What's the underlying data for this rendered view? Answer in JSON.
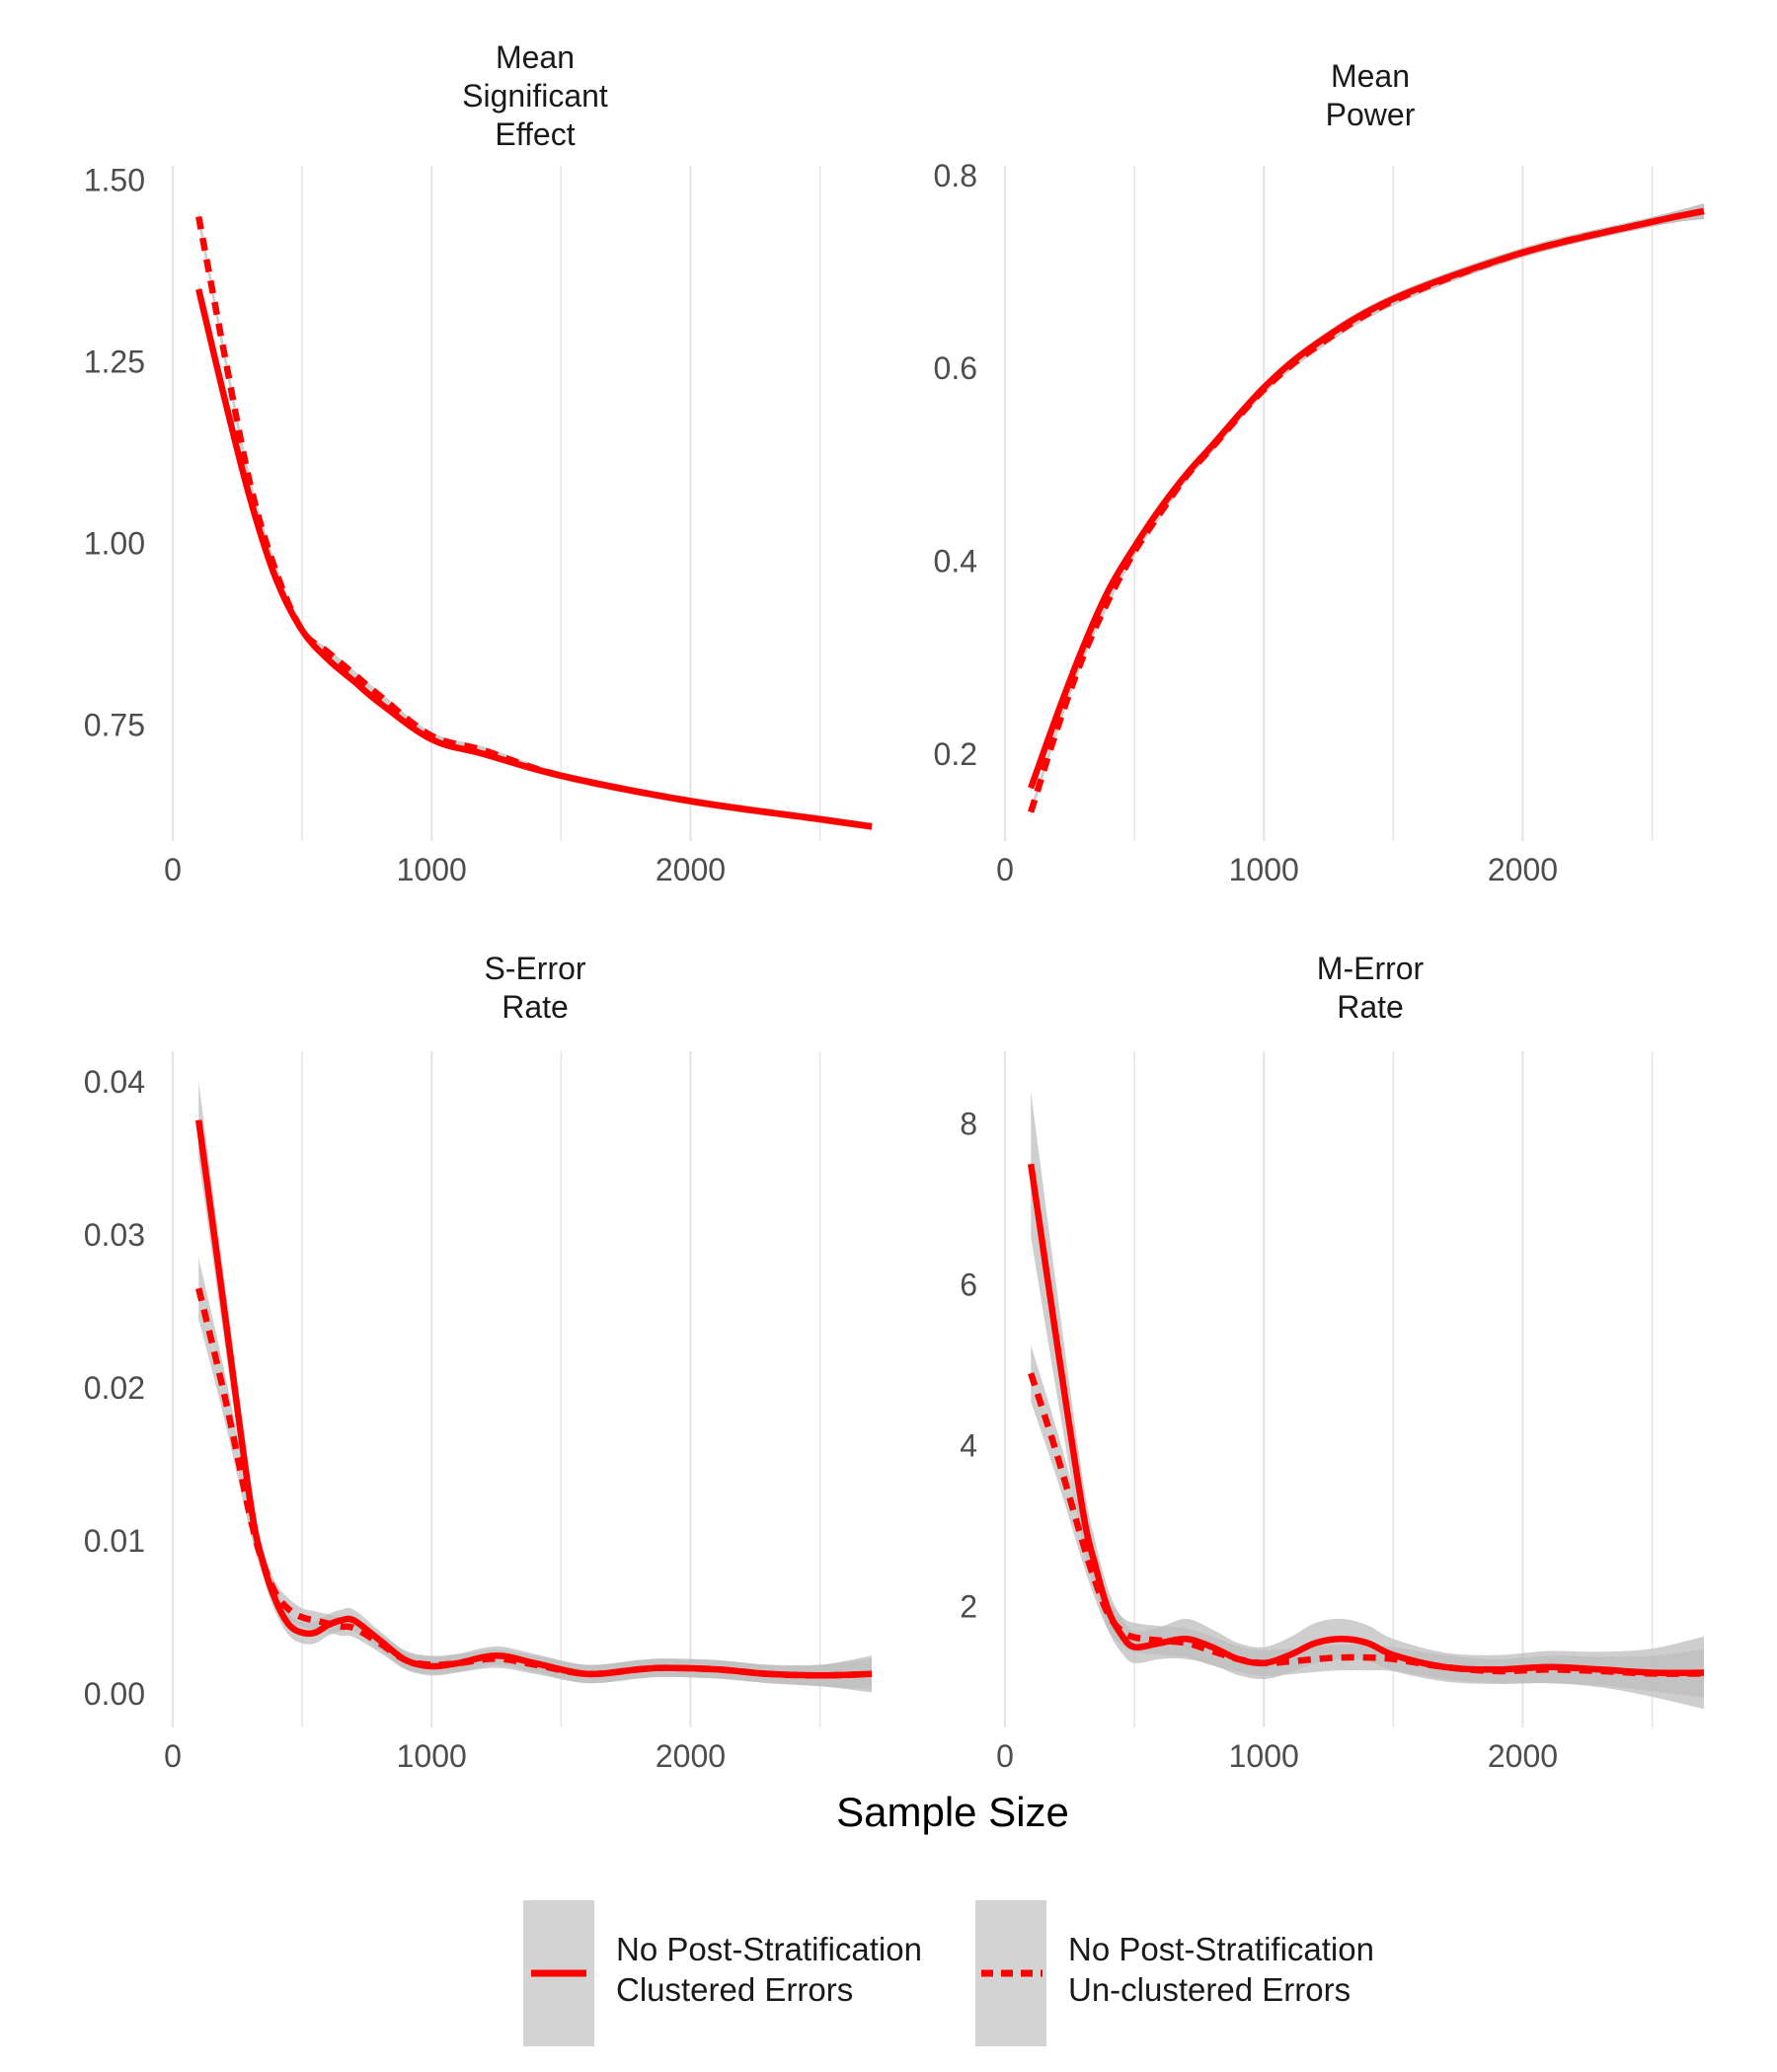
{
  "chart_data": {
    "type": "line",
    "xlabel": "Sample Size",
    "colors": {
      "line": "#ff0000",
      "ribbon": "#bdbdbd",
      "grid": "#e5e5e5",
      "legend_key_bg": "#d3d3d3"
    },
    "legend": {
      "placement": "bottom",
      "entries": [
        {
          "line1": "No Post-Stratification",
          "line2": "Clustered Errors",
          "linetype": "solid"
        },
        {
          "line1": "No Post-Stratification",
          "line2": "Un-clustered Errors",
          "linetype": "dashed"
        }
      ]
    },
    "panels": [
      {
        "title": [
          "Mean",
          "Significant",
          "Effect"
        ],
        "xlim": [
          0,
          2700
        ],
        "ylim": [
          0.59,
          1.52
        ],
        "xticks": [
          0,
          1000,
          2000
        ],
        "xtick_labels": [
          "0",
          "1000",
          "2000"
        ],
        "yticks": [
          0.75,
          1.0,
          1.25,
          1.5
        ],
        "ytick_labels": [
          "0.75",
          "1.00",
          "1.25",
          "1.50"
        ],
        "series": [
          {
            "legend_index": 0,
            "linetype": "solid",
            "x": [
              100,
              200,
              300,
              400,
              500,
              600,
              700,
              800,
              1000,
              1200,
              1500,
              2000,
              2500,
              2700
            ],
            "y": [
              1.35,
              1.2,
              1.06,
              0.95,
              0.88,
              0.84,
              0.81,
              0.78,
              0.73,
              0.71,
              0.68,
              0.645,
              0.62,
              0.61
            ],
            "band": [
              0.01,
              0.01,
              0.01,
              0.01,
              0.005,
              0.005,
              0.005,
              0.005,
              0.005,
              0.005,
              0.005,
              0.005,
              0.005,
              0.005
            ]
          },
          {
            "legend_index": 1,
            "linetype": "dashed",
            "x": [
              100,
              200,
              300,
              400,
              500,
              600,
              700,
              800,
              1000,
              1200,
              1500,
              2000,
              2500,
              2700
            ],
            "y": [
              1.45,
              1.26,
              1.08,
              0.96,
              0.88,
              0.85,
              0.82,
              0.79,
              0.735,
              0.715,
              0.68,
              0.645,
              0.62,
              0.61
            ],
            "band": [
              0.01,
              0.01,
              0.01,
              0.01,
              0.005,
              0.005,
              0.005,
              0.005,
              0.005,
              0.005,
              0.005,
              0.005,
              0.005,
              0.005
            ]
          }
        ]
      },
      {
        "title": [
          "Mean",
          "Power"
        ],
        "xlim": [
          0,
          2700
        ],
        "ylim": [
          0.11,
          0.81
        ],
        "xticks": [
          0,
          1000,
          2000
        ],
        "xtick_labels": [
          "0",
          "1000",
          "2000"
        ],
        "yticks": [
          0.2,
          0.4,
          0.6,
          0.8
        ],
        "ytick_labels": [
          "0.2",
          "0.4",
          "0.6",
          "0.8"
        ],
        "series": [
          {
            "legend_index": 0,
            "linetype": "solid",
            "x": [
              100,
              200,
              300,
              400,
              500,
              600,
              700,
              800,
              1000,
              1200,
              1500,
              2000,
              2500,
              2700
            ],
            "y": [
              0.165,
              0.24,
              0.31,
              0.37,
              0.415,
              0.455,
              0.49,
              0.52,
              0.58,
              0.625,
              0.672,
              0.72,
              0.752,
              0.763
            ],
            "band": [
              0.005,
              0.005,
              0.005,
              0.005,
              0.005,
              0.005,
              0.005,
              0.005,
              0.005,
              0.005,
              0.005,
              0.005,
              0.005,
              0.008
            ]
          },
          {
            "legend_index": 1,
            "linetype": "dashed",
            "x": [
              100,
              200,
              300,
              400,
              500,
              600,
              700,
              800,
              1000,
              1200,
              1500,
              2000,
              2500,
              2700
            ],
            "y": [
              0.14,
              0.225,
              0.3,
              0.36,
              0.41,
              0.45,
              0.488,
              0.518,
              0.578,
              0.622,
              0.67,
              0.72,
              0.752,
              0.763
            ],
            "band": [
              0.005,
              0.005,
              0.005,
              0.005,
              0.005,
              0.005,
              0.005,
              0.005,
              0.005,
              0.005,
              0.005,
              0.005,
              0.005,
              0.008
            ]
          }
        ]
      },
      {
        "title": [
          "S-Error",
          "Rate"
        ],
        "xlim": [
          0,
          2700
        ],
        "ylim": [
          -0.0022,
          0.042
        ],
        "xticks": [
          0,
          1000,
          2000
        ],
        "xtick_labels": [
          "0",
          "1000",
          "2000"
        ],
        "yticks": [
          0.0,
          0.01,
          0.02,
          0.03,
          0.04
        ],
        "ytick_labels": [
          "0.00",
          "0.01",
          "0.02",
          "0.03",
          "0.04"
        ],
        "series": [
          {
            "legend_index": 0,
            "linetype": "solid",
            "x": [
              100,
              200,
              300,
              350,
              400,
              450,
              500,
              550,
              600,
              650,
              700,
              800,
              900,
              1000,
              1100,
              1250,
              1400,
              1600,
              1800,
              1900,
              2100,
              2300,
              2500,
              2700
            ],
            "y": [
              0.0375,
              0.025,
              0.0125,
              0.0085,
              0.006,
              0.0045,
              0.004,
              0.004,
              0.0045,
              0.0048,
              0.0048,
              0.0035,
              0.0022,
              0.0018,
              0.002,
              0.0025,
              0.002,
              0.0013,
              0.0016,
              0.0017,
              0.0016,
              0.0013,
              0.0012,
              0.0013
            ],
            "band": [
              0.0025,
              0.002,
              0.0012,
              0.0009,
              0.0008,
              0.0007,
              0.0007,
              0.0007,
              0.0007,
              0.0007,
              0.0007,
              0.0006,
              0.0006,
              0.0006,
              0.0006,
              0.0006,
              0.0006,
              0.0006,
              0.0006,
              0.0006,
              0.0006,
              0.0006,
              0.0007,
              0.0012
            ]
          },
          {
            "legend_index": 1,
            "linetype": "dashed",
            "x": [
              100,
              200,
              300,
              350,
              400,
              450,
              500,
              550,
              600,
              650,
              700,
              800,
              900,
              1000,
              1100,
              1250,
              1400,
              1600,
              1800,
              1900,
              2100,
              2300,
              2500,
              2700
            ],
            "y": [
              0.0265,
              0.0195,
              0.0115,
              0.0085,
              0.0065,
              0.0055,
              0.005,
              0.0048,
              0.0046,
              0.0044,
              0.0043,
              0.0033,
              0.0022,
              0.0019,
              0.002,
              0.0023,
              0.0019,
              0.0013,
              0.0016,
              0.0017,
              0.0016,
              0.0013,
              0.0012,
              0.0013
            ],
            "band": [
              0.002,
              0.0016,
              0.001,
              0.0008,
              0.0007,
              0.0007,
              0.0006,
              0.0006,
              0.0006,
              0.0006,
              0.0006,
              0.0006,
              0.0006,
              0.0006,
              0.0006,
              0.0006,
              0.0006,
              0.0006,
              0.0006,
              0.0006,
              0.0006,
              0.0006,
              0.0007,
              0.001
            ]
          }
        ]
      },
      {
        "title": [
          "M-Error",
          "Rate"
        ],
        "xlim": [
          0,
          2700
        ],
        "ylim": [
          0.5,
          8.9
        ],
        "xticks": [
          0,
          1000,
          2000
        ],
        "xtick_labels": [
          "0",
          "1000",
          "2000"
        ],
        "yticks": [
          2,
          4,
          6,
          8
        ],
        "ytick_labels": [
          "2",
          "4",
          "6",
          "8"
        ],
        "series": [
          {
            "legend_index": 0,
            "linetype": "solid",
            "x": [
              100,
              200,
              300,
              350,
              400,
              450,
              500,
              600,
              700,
              800,
              900,
              1000,
              1100,
              1200,
              1300,
              1400,
              1500,
              1700,
              1900,
              2100,
              2300,
              2500,
              2700
            ],
            "y": [
              7.5,
              5.3,
              3.2,
              2.5,
              1.95,
              1.65,
              1.5,
              1.55,
              1.6,
              1.5,
              1.35,
              1.3,
              1.4,
              1.55,
              1.6,
              1.55,
              1.4,
              1.25,
              1.22,
              1.25,
              1.22,
              1.18,
              1.18
            ],
            "band": [
              0.9,
              0.65,
              0.4,
              0.3,
              0.25,
              0.22,
              0.2,
              0.2,
              0.25,
              0.22,
              0.2,
              0.2,
              0.22,
              0.25,
              0.25,
              0.22,
              0.2,
              0.18,
              0.18,
              0.2,
              0.22,
              0.3,
              0.45
            ]
          },
          {
            "legend_index": 1,
            "linetype": "dashed",
            "x": [
              100,
              200,
              300,
              350,
              400,
              450,
              500,
              600,
              700,
              800,
              900,
              1000,
              1100,
              1200,
              1300,
              1400,
              1500,
              1700,
              1900,
              2100,
              2300,
              2500,
              2700
            ],
            "y": [
              4.9,
              3.9,
              2.8,
              2.3,
              1.9,
              1.7,
              1.62,
              1.58,
              1.55,
              1.45,
              1.35,
              1.3,
              1.32,
              1.35,
              1.37,
              1.37,
              1.35,
              1.25,
              1.2,
              1.22,
              1.2,
              1.17,
              1.17
            ],
            "band": [
              0.35,
              0.3,
              0.25,
              0.22,
              0.2,
              0.18,
              0.18,
              0.18,
              0.18,
              0.18,
              0.16,
              0.16,
              0.16,
              0.16,
              0.16,
              0.16,
              0.15,
              0.15,
              0.15,
              0.17,
              0.18,
              0.22,
              0.3
            ]
          }
        ]
      }
    ]
  }
}
